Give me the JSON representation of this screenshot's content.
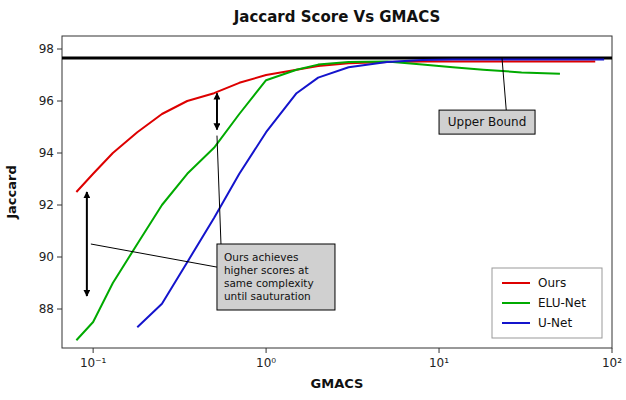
{
  "chart_data": {
    "type": "line",
    "title": "Jaccard Score Vs GMACS",
    "x_label": "GMACS",
    "y_label": "Jaccard",
    "log": "x",
    "grid": false,
    "legend": "lower right",
    "xlim": [
      0.0660693448,
      100
    ],
    "ylim": [
      86.5,
      98.5
    ],
    "xticks": [
      {
        "value": 0.1,
        "label": "10⁻¹"
      },
      {
        "value": 1,
        "label": "10⁰"
      },
      {
        "value": 10,
        "label": "10¹"
      },
      {
        "value": 100,
        "label": "10²"
      }
    ],
    "yticks": [
      88,
      90,
      92,
      94,
      96,
      98
    ],
    "series": [
      {
        "name": "Ours",
        "color": "#dd0000",
        "x": [
          0.08,
          0.1,
          0.13,
          0.18,
          0.25,
          0.35,
          0.5,
          0.7,
          1.0,
          1.5,
          2.0,
          3.0,
          5.0,
          8.0,
          12.0,
          20.0,
          40.0,
          80.0
        ],
        "values": [
          92.5,
          93.2,
          94.0,
          94.8,
          95.5,
          96.0,
          96.3,
          96.7,
          97.0,
          97.2,
          97.35,
          97.45,
          97.5,
          97.52,
          97.52,
          97.52,
          97.52,
          97.52
        ]
      },
      {
        "name": "ELU-Net",
        "color": "#00aa00",
        "x": [
          0.08,
          0.1,
          0.13,
          0.18,
          0.25,
          0.35,
          0.5,
          0.7,
          1.0,
          1.5,
          2.0,
          3.0,
          5.0,
          8.0,
          12.0,
          18.0,
          30.0,
          50.0
        ],
        "values": [
          86.8,
          87.5,
          89.0,
          90.5,
          92.0,
          93.2,
          94.2,
          95.5,
          96.8,
          97.2,
          97.4,
          97.5,
          97.52,
          97.4,
          97.3,
          97.2,
          97.1,
          97.05
        ]
      },
      {
        "name": "U-Net",
        "color": "#1414cc",
        "x": [
          0.18,
          0.25,
          0.35,
          0.5,
          0.7,
          1.0,
          1.5,
          2.0,
          3.0,
          5.0,
          8.0,
          12.0,
          20.0,
          35.0,
          60.0,
          90.0
        ],
        "values": [
          87.3,
          88.2,
          89.8,
          91.5,
          93.2,
          94.8,
          96.3,
          96.9,
          97.3,
          97.5,
          97.58,
          97.6,
          97.6,
          97.6,
          97.6,
          97.6
        ]
      }
    ],
    "reference_lines": [
      {
        "y": 97.65,
        "color": "#000000",
        "label": "Upper Bound"
      }
    ],
    "arrows": [
      {
        "x": 0.52,
        "y1": 94.9,
        "y2": 96.3
      },
      {
        "x": 0.092,
        "y1": 88.5,
        "y2": 92.5
      }
    ],
    "annotations": [
      {
        "text": "Ours achieves\nhigher scores at\nsame complexity\nuntil sauturation"
      }
    ]
  }
}
